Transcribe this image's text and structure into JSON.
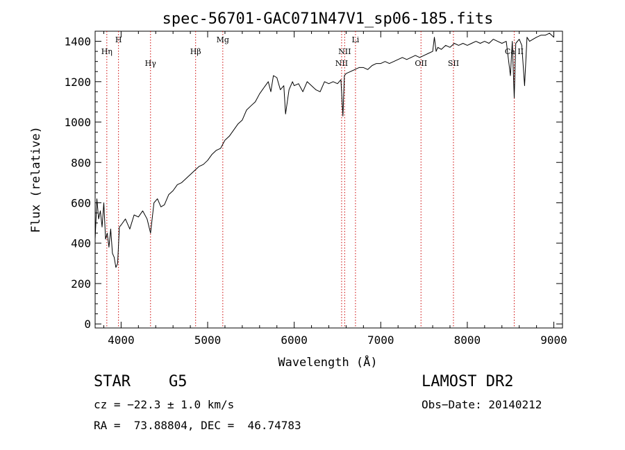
{
  "chart_data": {
    "type": "line",
    "title": "spec-56701-GAC071N47V1_sp06-185.fits",
    "xlabel": "Wavelength (Å)",
    "ylabel": "Flux (relative)",
    "xlim": [
      3700,
      9100
    ],
    "ylim": [
      -20,
      1450
    ],
    "xticks": [
      4000,
      5000,
      6000,
      7000,
      8000,
      9000
    ],
    "yticks": [
      0,
      200,
      400,
      600,
      800,
      1000,
      1200,
      1400
    ],
    "line_color": "#000000",
    "marker_color": "#cc0000",
    "series": [
      {
        "x": [
          3700,
          3720,
          3740,
          3760,
          3780,
          3800,
          3820,
          3840,
          3860,
          3880,
          3900,
          3920,
          3940,
          3960,
          3980,
          4000,
          4050,
          4100,
          4150,
          4200,
          4250,
          4300,
          4340,
          4380,
          4420,
          4460,
          4500,
          4550,
          4600,
          4650,
          4700,
          4750,
          4800,
          4850,
          4900,
          4950,
          5000,
          5050,
          5100,
          5150,
          5200,
          5250,
          5300,
          5350,
          5400,
          5450,
          5500,
          5550,
          5600,
          5650,
          5700,
          5730,
          5760,
          5800,
          5840,
          5880,
          5900,
          5940,
          5980,
          6000,
          6050,
          6100,
          6150,
          6200,
          6250,
          6300,
          6350,
          6400,
          6450,
          6500,
          6540,
          6563,
          6580,
          6600,
          6650,
          6700,
          6750,
          6800,
          6850,
          6900,
          6950,
          7000,
          7050,
          7100,
          7150,
          7200,
          7250,
          7300,
          7350,
          7400,
          7450,
          7500,
          7550,
          7600,
          7620,
          7640,
          7660,
          7700,
          7750,
          7800,
          7850,
          7900,
          7950,
          8000,
          8050,
          8100,
          8150,
          8200,
          8250,
          8300,
          8350,
          8400,
          8450,
          8498,
          8520,
          8542,
          8560,
          8600,
          8630,
          8662,
          8690,
          8720,
          8760,
          8800,
          8850,
          8900,
          8950,
          9000
        ],
        "y": [
          420,
          620,
          520,
          560,
          480,
          600,
          420,
          450,
          380,
          470,
          350,
          330,
          280,
          300,
          480,
          490,
          520,
          470,
          540,
          530,
          560,
          520,
          450,
          600,
          620,
          580,
          590,
          640,
          660,
          690,
          700,
          720,
          740,
          760,
          780,
          790,
          810,
          840,
          860,
          870,
          910,
          930,
          960,
          990,
          1010,
          1060,
          1080,
          1100,
          1140,
          1170,
          1200,
          1150,
          1230,
          1220,
          1160,
          1180,
          1040,
          1160,
          1200,
          1180,
          1190,
          1150,
          1200,
          1180,
          1160,
          1150,
          1200,
          1190,
          1200,
          1190,
          1210,
          1030,
          1230,
          1240,
          1250,
          1260,
          1270,
          1270,
          1260,
          1280,
          1290,
          1290,
          1300,
          1290,
          1300,
          1310,
          1320,
          1310,
          1320,
          1330,
          1320,
          1330,
          1340,
          1350,
          1420,
          1350,
          1370,
          1360,
          1380,
          1370,
          1390,
          1380,
          1390,
          1380,
          1390,
          1400,
          1390,
          1400,
          1390,
          1410,
          1400,
          1390,
          1400,
          1230,
          1400,
          1120,
          1390,
          1410,
          1380,
          1180,
          1420,
          1400,
          1410,
          1420,
          1430,
          1430,
          1440,
          1420
        ]
      }
    ],
    "lines": [
      {
        "label": "Hη",
        "x": 3835,
        "row": 2
      },
      {
        "label": "H",
        "x": 3970,
        "row": 1
      },
      {
        "label": "Hγ",
        "x": 4340,
        "row": 3
      },
      {
        "label": "Hβ",
        "x": 4861,
        "row": 2
      },
      {
        "label": "Mg",
        "x": 5175,
        "row": 1
      },
      {
        "label": "NII",
        "x": 6548,
        "row": 3
      },
      {
        "label": "NII",
        "x": 6583,
        "row": 2
      },
      {
        "label": "Li",
        "x": 6708,
        "row": 1
      },
      {
        "label": "OII",
        "x": 7465,
        "row": 3
      },
      {
        "label": "SII",
        "x": 7840,
        "row": 3
      },
      {
        "label": "Ca II",
        "x": 8542,
        "row": 2
      }
    ]
  },
  "info": {
    "object_class": "STAR",
    "subclass": "G5",
    "survey": "LAMOST DR2",
    "cz": "cz = −22.3 ± 1.0 km/s",
    "obs_date": "Obs−Date: 20140212",
    "coords": "RA =  73.88804, DEC =  46.74783"
  }
}
